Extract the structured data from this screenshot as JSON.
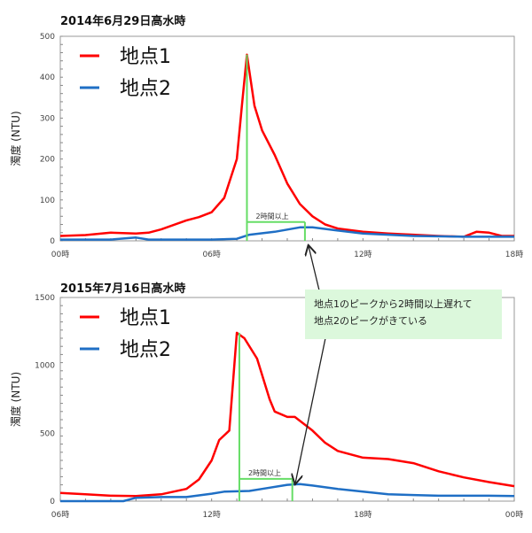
{
  "chart_data": [
    {
      "type": "line",
      "title": "2014年6月29日高水時",
      "ylabel": "濁度 (NTU)",
      "ylim": [
        0,
        500
      ],
      "yticks": [
        0,
        100,
        200,
        300,
        400,
        500
      ],
      "xlim": [
        0,
        18
      ],
      "xticks": [
        0,
        6,
        12,
        18
      ],
      "xtick_labels": [
        "00時",
        "06時",
        "12時",
        "18時"
      ],
      "legend": "top-left",
      "annotation": "2時間以上",
      "peak_markers": [
        7.4,
        9.7
      ],
      "series": [
        {
          "name": "地点1",
          "color": "#ff0000",
          "points": [
            [
              0,
              12
            ],
            [
              1,
              14
            ],
            [
              2,
              20
            ],
            [
              3,
              18
            ],
            [
              3.5,
              20
            ],
            [
              4,
              28
            ],
            [
              5,
              50
            ],
            [
              5.5,
              58
            ],
            [
              6,
              70
            ],
            [
              6.5,
              105
            ],
            [
              7,
              200
            ],
            [
              7.2,
              330
            ],
            [
              7.4,
              455
            ],
            [
              7.7,
              330
            ],
            [
              8,
              270
            ],
            [
              8.5,
              210
            ],
            [
              9,
              140
            ],
            [
              9.5,
              90
            ],
            [
              10,
              60
            ],
            [
              10.5,
              40
            ],
            [
              11,
              30
            ],
            [
              12,
              22
            ],
            [
              13,
              18
            ],
            [
              14,
              15
            ],
            [
              15,
              12
            ],
            [
              16,
              10
            ],
            [
              16.5,
              22
            ],
            [
              17,
              20
            ],
            [
              17.5,
              12
            ],
            [
              18,
              12
            ]
          ]
        },
        {
          "name": "地点2",
          "color": "#1f6fc5",
          "points": [
            [
              0,
              3
            ],
            [
              2,
              3
            ],
            [
              3,
              8
            ],
            [
              3.5,
              3
            ],
            [
              6,
              3
            ],
            [
              7,
              5
            ],
            [
              7.5,
              15
            ],
            [
              8.5,
              22
            ],
            [
              9.5,
              33
            ],
            [
              10,
              33
            ],
            [
              11,
              25
            ],
            [
              12,
              18
            ],
            [
              14,
              12
            ],
            [
              16,
              10
            ],
            [
              18,
              10
            ]
          ]
        }
      ]
    },
    {
      "type": "line",
      "title": "2015年7月16日高水時",
      "ylabel": "濁度 (NTU)",
      "ylim": [
        0,
        1500
      ],
      "yticks": [
        0,
        500,
        1000,
        1500
      ],
      "xlim": [
        6,
        24
      ],
      "xticks": [
        6,
        12,
        18,
        24
      ],
      "xtick_labels": [
        "06時",
        "12時",
        "18時",
        "00時"
      ],
      "legend": "top-left",
      "annotation": "2時間以上",
      "peak_markers": [
        13.1,
        15.2
      ],
      "series": [
        {
          "name": "地点1",
          "color": "#ff0000",
          "points": [
            [
              6,
              60
            ],
            [
              7,
              50
            ],
            [
              8,
              40
            ],
            [
              9,
              38
            ],
            [
              10,
              50
            ],
            [
              11,
              90
            ],
            [
              11.5,
              160
            ],
            [
              12,
              300
            ],
            [
              12.3,
              450
            ],
            [
              12.7,
              520
            ],
            [
              13,
              1240
            ],
            [
              13.3,
              1200
            ],
            [
              13.8,
              1050
            ],
            [
              14.3,
              750
            ],
            [
              14.5,
              660
            ],
            [
              15,
              620
            ],
            [
              15.3,
              620
            ],
            [
              16,
              520
            ],
            [
              16.5,
              430
            ],
            [
              17,
              370
            ],
            [
              18,
              320
            ],
            [
              19,
              310
            ],
            [
              20,
              280
            ],
            [
              21,
              220
            ],
            [
              22,
              175
            ],
            [
              23,
              140
            ],
            [
              24,
              110
            ]
          ]
        },
        {
          "name": "地点2",
          "color": "#1f6fc5",
          "points": [
            [
              6,
              0
            ],
            [
              8.5,
              0
            ],
            [
              9,
              25
            ],
            [
              10,
              30
            ],
            [
              11,
              30
            ],
            [
              12,
              55
            ],
            [
              12.5,
              70
            ],
            [
              13.5,
              75
            ],
            [
              14,
              90
            ],
            [
              15,
              120
            ],
            [
              15.5,
              125
            ],
            [
              16,
              115
            ],
            [
              17,
              90
            ],
            [
              18,
              70
            ],
            [
              19,
              50
            ],
            [
              20,
              45
            ],
            [
              21,
              40
            ],
            [
              22,
              40
            ],
            [
              23,
              40
            ],
            [
              24,
              38
            ]
          ]
        }
      ]
    }
  ],
  "callout": {
    "line1": "地点1のピークから2時間以上遅れて",
    "line2": "地点2のピークがきている"
  }
}
